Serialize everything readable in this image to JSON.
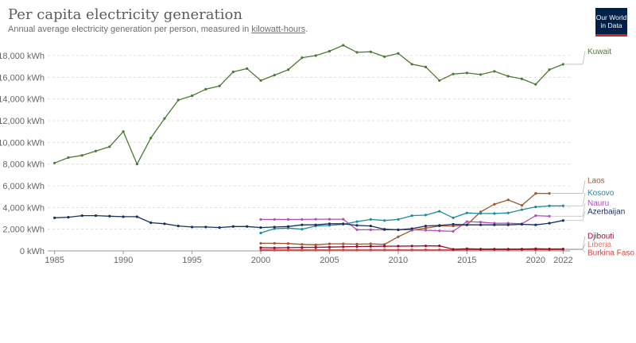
{
  "header": {
    "title": "Per capita electricity generation",
    "subtitle_prefix": "Annual average electricity generation per person, measured in ",
    "subtitle_link": "kilowatt-hours",
    "subtitle_suffix": ".",
    "logo_line1": "Our World",
    "logo_line2": "in Data"
  },
  "chart_data": {
    "type": "line",
    "title": "Per capita electricity generation",
    "subtitle": "Annual average electricity generation per person, measured in kilowatt-hours.",
    "xlim": [
      1984.5,
      2022.5
    ],
    "ylim": [
      0,
      18000
    ],
    "x_ticks": [
      1985,
      1990,
      1995,
      2000,
      2005,
      2010,
      2015,
      2020,
      2022
    ],
    "y_ticks": [
      {
        "value": 0,
        "label": "0 kWh"
      },
      {
        "value": 2000,
        "label": "2,000 kWh"
      },
      {
        "value": 4000,
        "label": "4,000 kWh"
      },
      {
        "value": 6000,
        "label": "6,000 kWh"
      },
      {
        "value": 8000,
        "label": "8,000 kWh"
      },
      {
        "value": 10000,
        "label": "10,000 kWh"
      },
      {
        "value": 12000,
        "label": "12,000 kWh"
      },
      {
        "value": 14000,
        "label": "14,000 kWh"
      },
      {
        "value": 16000,
        "label": "16,000 kWh"
      },
      {
        "value": 18000,
        "label": "18,000 kWh"
      }
    ],
    "grid": "horizontal dashed",
    "legend": "line-end labels on the right",
    "series": [
      {
        "name": "Kuwait",
        "color": "#4c7a34",
        "x": [
          1985,
          1986,
          1987,
          1988,
          1989,
          1990,
          1991,
          1992,
          1993,
          1994,
          1995,
          1996,
          1997,
          1998,
          1999,
          2000,
          2001,
          2002,
          2003,
          2004,
          2005,
          2006,
          2007,
          2008,
          2009,
          2010,
          2011,
          2012,
          2013,
          2014,
          2015,
          2016,
          2017,
          2018,
          2019,
          2020,
          2021,
          2022
        ],
        "y": [
          8100,
          8600,
          8800,
          9200,
          9600,
          11000,
          8000,
          10400,
          12200,
          13900,
          14300,
          14900,
          15200,
          16500,
          16800,
          15700,
          16200,
          16700,
          17800,
          18000,
          18400,
          18950,
          18300,
          18350,
          17900,
          18200,
          17200,
          16950,
          15700,
          16300,
          16400,
          16250,
          16550,
          16100,
          15850,
          15350,
          16700,
          17200
        ]
      },
      {
        "name": "Laos",
        "color": "#a2552c",
        "x": [
          2000,
          2001,
          2002,
          2003,
          2004,
          2005,
          2006,
          2007,
          2008,
          2009,
          2010,
          2011,
          2012,
          2013,
          2014,
          2015,
          2016,
          2017,
          2018,
          2019,
          2020,
          2021
        ],
        "y": [
          700,
          700,
          680,
          600,
          560,
          650,
          650,
          620,
          650,
          600,
          1300,
          1900,
          2100,
          2300,
          2300,
          2400,
          3600,
          4300,
          4700,
          4200,
          5300,
          5300
        ]
      },
      {
        "name": "Kosovo",
        "color": "#1d8ca0",
        "x": [
          2000,
          2001,
          2002,
          2003,
          2004,
          2005,
          2006,
          2007,
          2008,
          2009,
          2010,
          2011,
          2012,
          2013,
          2014,
          2015,
          2016,
          2017,
          2018,
          2019,
          2020,
          2021,
          2022
        ],
        "y": [
          1650,
          2050,
          2100,
          2000,
          2300,
          2350,
          2450,
          2700,
          2900,
          2800,
          2900,
          3250,
          3300,
          3650,
          3050,
          3500,
          3450,
          3450,
          3500,
          3800,
          4050,
          4150,
          4150
        ]
      },
      {
        "name": "Nauru",
        "color": "#b150b5",
        "x": [
          2000,
          2001,
          2002,
          2003,
          2004,
          2005,
          2006,
          2007,
          2008,
          2009,
          2010,
          2011,
          2012,
          2013,
          2014,
          2015,
          2016,
          2017,
          2018,
          2019,
          2020,
          2021
        ],
        "y": [
          2900,
          2900,
          2900,
          2900,
          2920,
          2920,
          2920,
          1950,
          1950,
          1950,
          1950,
          1950,
          1900,
          1850,
          1800,
          2700,
          2650,
          2550,
          2550,
          2500,
          3250,
          3200
        ]
      },
      {
        "name": "Azerbaijan",
        "color": "#16305e",
        "x": [
          1985,
          1986,
          1987,
          1988,
          1989,
          1990,
          1991,
          1992,
          1993,
          1994,
          1995,
          1996,
          1997,
          1998,
          1999,
          2000,
          2001,
          2002,
          2003,
          2004,
          2005,
          2006,
          2007,
          2008,
          2009,
          2010,
          2011,
          2012,
          2013,
          2014,
          2015,
          2016,
          2017,
          2018,
          2019,
          2020,
          2021,
          2022
        ],
        "y": [
          3050,
          3100,
          3250,
          3250,
          3200,
          3150,
          3150,
          2600,
          2500,
          2300,
          2200,
          2200,
          2150,
          2250,
          2250,
          2150,
          2200,
          2250,
          2400,
          2400,
          2500,
          2500,
          2350,
          2300,
          2000,
          1950,
          2050,
          2300,
          2350,
          2450,
          2400,
          2400,
          2400,
          2400,
          2450,
          2400,
          2550,
          2800
        ]
      },
      {
        "name": "Liberia",
        "color": "#e5776c",
        "x": [
          2000,
          2001,
          2002,
          2003,
          2004,
          2005,
          2006,
          2007,
          2008,
          2009,
          2010,
          2011,
          2012,
          2013,
          2014,
          2015,
          2016,
          2017,
          2018,
          2019,
          2020,
          2021,
          2022
        ],
        "y": [
          110,
          110,
          110,
          110,
          110,
          110,
          110,
          110,
          110,
          110,
          110,
          110,
          110,
          110,
          110,
          110,
          110,
          110,
          110,
          110,
          110,
          110,
          110
        ]
      },
      {
        "name": "Burkina Faso",
        "color": "#c94a4a",
        "x": [
          2000,
          2001,
          2002,
          2003,
          2004,
          2005,
          2006,
          2007,
          2008,
          2009,
          2010,
          2011,
          2012,
          2013,
          2014,
          2015,
          2016,
          2017,
          2018,
          2019,
          2020,
          2021,
          2022
        ],
        "y": [
          60,
          60,
          60,
          60,
          70,
          70,
          70,
          70,
          80,
          80,
          80,
          80,
          90,
          90,
          90,
          100,
          100,
          100,
          100,
          110,
          110,
          110,
          110
        ]
      },
      {
        "name": "Djibouti",
        "color": "#9a0b2e",
        "x": [
          2000,
          2001,
          2002,
          2003,
          2004,
          2005,
          2006,
          2007,
          2008,
          2009,
          2010,
          2011,
          2012,
          2013,
          2014,
          2015,
          2016,
          2017,
          2018,
          2019,
          2020,
          2021,
          2022
        ],
        "y": [
          300,
          280,
          300,
          320,
          330,
          350,
          380,
          400,
          420,
          430,
          440,
          450,
          460,
          470,
          150,
          200,
          170,
          170,
          170,
          170,
          200,
          180,
          180
        ]
      }
    ]
  }
}
